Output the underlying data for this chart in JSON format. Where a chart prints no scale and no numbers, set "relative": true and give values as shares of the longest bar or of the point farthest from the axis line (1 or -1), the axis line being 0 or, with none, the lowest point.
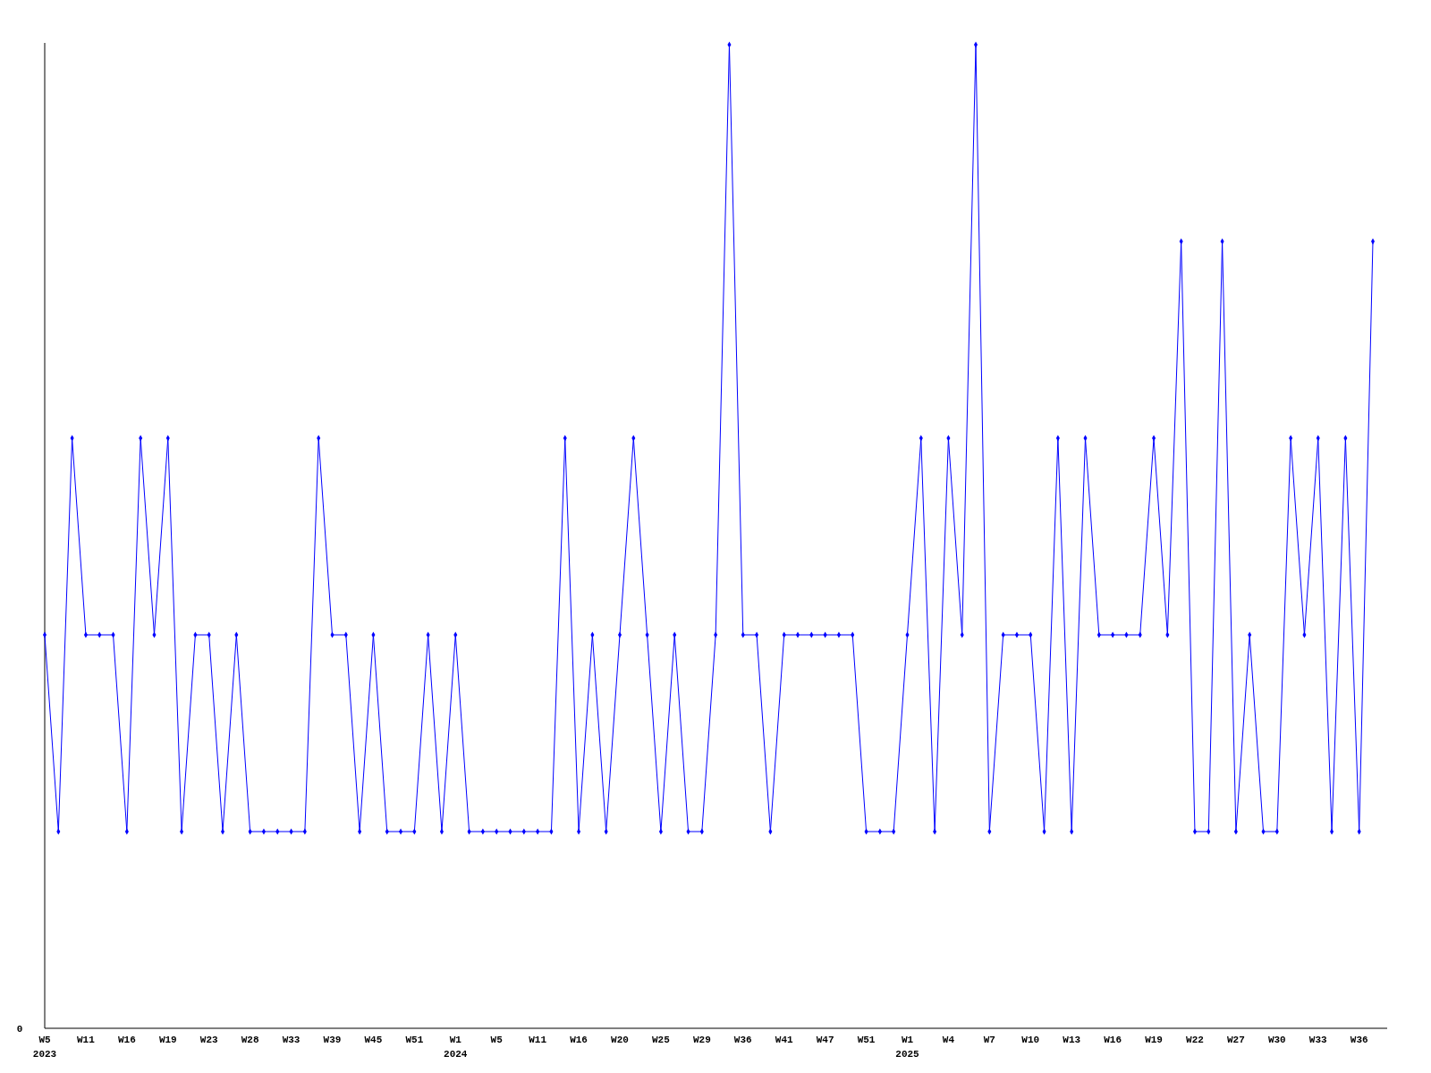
{
  "chart_data": {
    "type": "line",
    "relative": true,
    "marker": "diamond",
    "line_style": "solid",
    "grid": false,
    "annotations": [
      "0"
    ],
    "categories": [
      "W5\n2023",
      null,
      null,
      "W11",
      null,
      null,
      "W16",
      null,
      null,
      "W19",
      null,
      null,
      "W23",
      null,
      null,
      "W28",
      null,
      null,
      "W33",
      null,
      null,
      "W39",
      null,
      null,
      "W45",
      null,
      null,
      "W51",
      null,
      null,
      "W1\n2024",
      null,
      null,
      "W5",
      null,
      null,
      "W11",
      null,
      null,
      "W16",
      null,
      null,
      "W20",
      null,
      null,
      "W25",
      null,
      null,
      "W29",
      null,
      null,
      "W36",
      null,
      null,
      "W41",
      null,
      null,
      "W47",
      null,
      null,
      "W51",
      null,
      null,
      "W1\n2025",
      null,
      null,
      "W4",
      null,
      null,
      "W7",
      null,
      null,
      "W10",
      null,
      null,
      "W13",
      null,
      null,
      "W16",
      null,
      null,
      "W19",
      null,
      null,
      "W22",
      null,
      null,
      "W27",
      null,
      null,
      "W30",
      null,
      null,
      "W33",
      null,
      null,
      "W36",
      null
    ],
    "series": [
      {
        "color": "#0000ff",
        "values": [
          0.4,
          0.2,
          0.6,
          0.4,
          0.4,
          0.4,
          0.2,
          0.6,
          0.4,
          0.6,
          0.2,
          0.4,
          0.4,
          0.2,
          0.4,
          0.2,
          0.2,
          0.2,
          0.2,
          0.2,
          0.6,
          0.4,
          0.4,
          0.2,
          0.4,
          0.2,
          0.2,
          0.2,
          0.4,
          0.2,
          0.4,
          0.2,
          0.2,
          0.2,
          0.2,
          0.2,
          0.2,
          0.2,
          0.6,
          0.2,
          0.4,
          0.2,
          0.4,
          0.6,
          0.4,
          0.2,
          0.4,
          0.2,
          0.2,
          0.4,
          1,
          0.4,
          0.4,
          0.2,
          0.4,
          0.4,
          0.4,
          0.4,
          0.4,
          0.4,
          0.2,
          0.2,
          0.2,
          0.4,
          0.6,
          0.2,
          0.6,
          0.4,
          1,
          0.2,
          0.4,
          0.4,
          0.4,
          0.2,
          0.6,
          0.2,
          0.6,
          0.4,
          0.4,
          0.4,
          0.4,
          0.6,
          0.4,
          0.8,
          0.2,
          0.2,
          0.8,
          0.2,
          0.4,
          0.2,
          0.2,
          0.6,
          0.4,
          0.6,
          0.2,
          0.6,
          0.2,
          0.8
        ]
      }
    ]
  }
}
